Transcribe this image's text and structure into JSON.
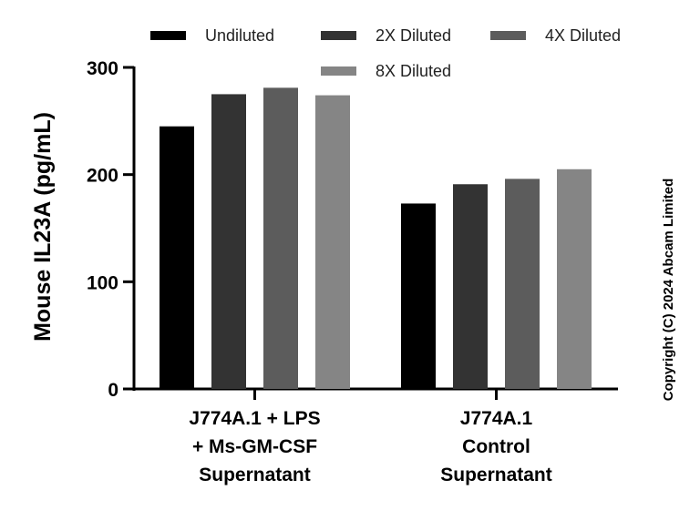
{
  "chart_data": {
    "type": "bar",
    "ylabel": "Mouse IL23A (pg/mL)",
    "xlabel": "",
    "ylim": [
      0,
      300
    ],
    "yticks": [
      0,
      100,
      200,
      300
    ],
    "categories": [
      [
        "J774A.1 + LPS",
        "+ Ms-GM-CSF",
        "Supernatant"
      ],
      [
        "J774A.1",
        "Control",
        "Supernatant"
      ]
    ],
    "series": [
      {
        "name": "Undiluted",
        "color": "#000000",
        "values": [
          245,
          173
        ]
      },
      {
        "name": "2X Diluted",
        "color": "#333333",
        "values": [
          275,
          191
        ]
      },
      {
        "name": "4X Diluted",
        "color": "#5c5c5c",
        "values": [
          281,
          196
        ]
      },
      {
        "name": "8X Diluted",
        "color": "#858585",
        "values": [
          274,
          205
        ]
      }
    ],
    "legend_position": "top",
    "grid": false,
    "annotation": "Copyright (C) 2024 Abcam Limited"
  }
}
